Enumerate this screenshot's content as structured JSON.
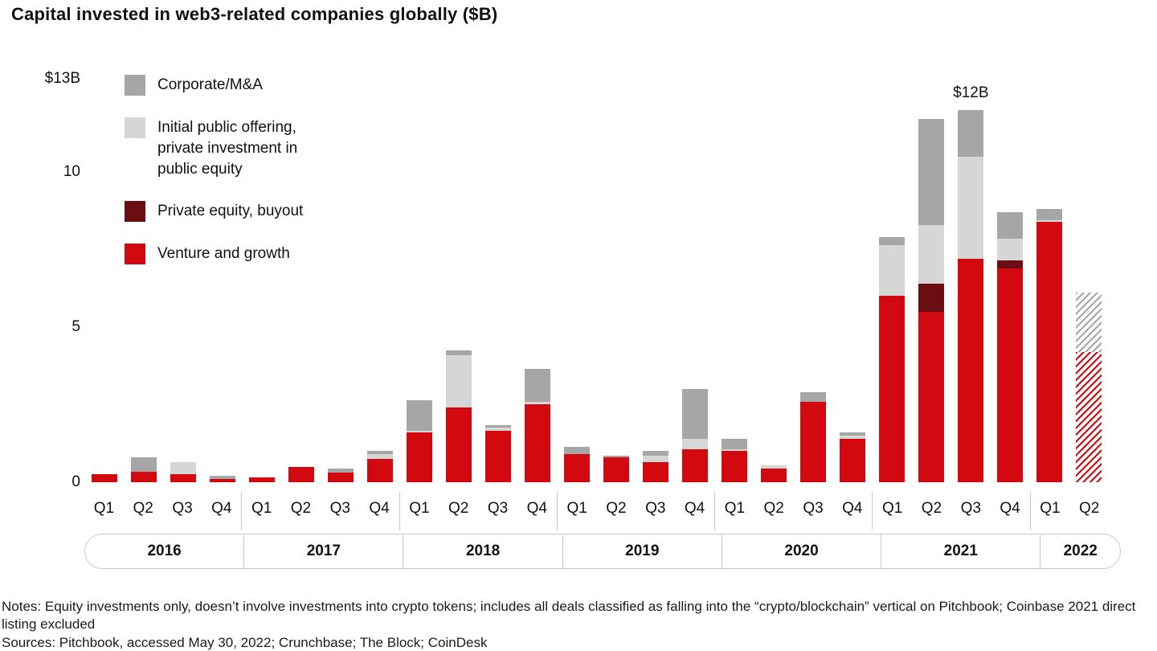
{
  "title": "Capital invested in web3-related companies globally ($B)",
  "legend": [
    {
      "label": "Corporate/M&A",
      "color": "#a6a6a6"
    },
    {
      "label": "Initial public offering, private investment in public equity",
      "color": "#d6d6d6"
    },
    {
      "label": "Private equity, buyout",
      "color": "#6a0e13"
    },
    {
      "label": "Venture and growth",
      "color": "#d20a10"
    }
  ],
  "chart_data": {
    "type": "bar",
    "stacked": true,
    "title": "Capital invested in web3-related companies globally ($B)",
    "ylabel": "$B",
    "ylim": [
      0,
      13
    ],
    "grid": false,
    "yticks": [
      {
        "value": 13,
        "label": "$13B"
      },
      {
        "value": 10,
        "label": "10"
      },
      {
        "value": 5,
        "label": "5"
      },
      {
        "value": 0,
        "label": "0"
      }
    ],
    "years": [
      {
        "year": "2016",
        "quarters": [
          "Q1",
          "Q2",
          "Q3",
          "Q4"
        ]
      },
      {
        "year": "2017",
        "quarters": [
          "Q1",
          "Q2",
          "Q3",
          "Q4"
        ]
      },
      {
        "year": "2018",
        "quarters": [
          "Q1",
          "Q2",
          "Q3",
          "Q4"
        ]
      },
      {
        "year": "2019",
        "quarters": [
          "Q1",
          "Q2",
          "Q3",
          "Q4"
        ]
      },
      {
        "year": "2020",
        "quarters": [
          "Q1",
          "Q2",
          "Q3",
          "Q4"
        ]
      },
      {
        "year": "2021",
        "quarters": [
          "Q1",
          "Q2",
          "Q3",
          "Q4"
        ]
      },
      {
        "year": "2022",
        "quarters": [
          "Q1",
          "Q2"
        ]
      }
    ],
    "categories": [
      "Q1 2016",
      "Q2 2016",
      "Q3 2016",
      "Q4 2016",
      "Q1 2017",
      "Q2 2017",
      "Q3 2017",
      "Q4 2017",
      "Q1 2018",
      "Q2 2018",
      "Q3 2018",
      "Q4 2018",
      "Q1 2019",
      "Q2 2019",
      "Q3 2019",
      "Q4 2019",
      "Q1 2020",
      "Q2 2020",
      "Q3 2020",
      "Q4 2020",
      "Q1 2021",
      "Q2 2021",
      "Q3 2021",
      "Q4 2021",
      "Q1 2022",
      "Q2 2022"
    ],
    "stack_order": "bottom-to-top",
    "series": [
      {
        "name": "Venture and growth",
        "color": "#d20a10",
        "values": [
          0.25,
          0.35,
          0.25,
          0.1,
          0.15,
          0.5,
          0.3,
          0.75,
          1.6,
          2.4,
          1.65,
          2.5,
          0.9,
          0.8,
          0.65,
          1.05,
          1.0,
          0.45,
          2.6,
          1.4,
          6.0,
          5.5,
          7.2,
          6.9,
          8.4,
          4.2
        ]
      },
      {
        "name": "Private equity, buyout",
        "color": "#6a0e13",
        "values": [
          0,
          0,
          0,
          0,
          0,
          0,
          0,
          0,
          0,
          0,
          0,
          0,
          0,
          0,
          0,
          0,
          0,
          0,
          0,
          0,
          0,
          0.9,
          0,
          0.25,
          0,
          0
        ]
      },
      {
        "name": "Initial public offering, private investment in public equity",
        "color": "#d6d6d6",
        "values": [
          0,
          0,
          0.4,
          0,
          0,
          0,
          0,
          0.15,
          0.05,
          1.7,
          0.1,
          0.1,
          0,
          0,
          0.2,
          0.35,
          0.05,
          0.1,
          0,
          0.1,
          1.65,
          1.9,
          3.3,
          0.7,
          0.05,
          0
        ]
      },
      {
        "name": "Corporate/M&A",
        "color": "#a6a6a6",
        "values": [
          0,
          0.45,
          0,
          0.1,
          0,
          0,
          0.15,
          0.1,
          1.0,
          0.15,
          0.1,
          1.05,
          0.25,
          0.05,
          0.15,
          1.6,
          0.35,
          0,
          0.3,
          0.1,
          0.25,
          3.4,
          1.5,
          0.85,
          0.35,
          1.9
        ]
      }
    ],
    "hatched_bars": [
      25
    ],
    "annotation": {
      "bar_index": 22,
      "label": "$12B"
    }
  },
  "notes": "Notes: Equity investments only, doesn’t involve investments into crypto tokens; includes all deals classified as falling into the “crypto/blockchain” vertical on Pitchbook; Coinbase 2021 direct listing excluded",
  "sources": "Sources: Pitchbook, accessed May 30, 2022; Crunchbase; The Block; CoinDesk"
}
